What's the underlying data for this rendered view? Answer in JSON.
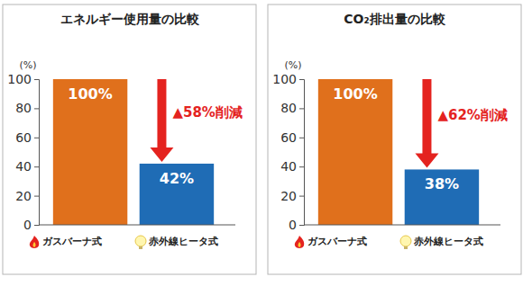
{
  "chart_data": [
    {
      "type": "bar",
      "title": "エネルギー使用量の比較",
      "y_label": "(%)",
      "categories": [
        "ガスバーナ式",
        "赤外線ヒータ式"
      ],
      "values": [
        100,
        42
      ],
      "value_labels": [
        "100%",
        "42%"
      ],
      "colors": [
        "#e0701c",
        "#1f6cb5"
      ],
      "ylim": [
        0,
        100
      ],
      "yticks": [
        0,
        20,
        40,
        60,
        80,
        100
      ],
      "data_labels": true,
      "tick_labels": "y",
      "legend": "bottom",
      "grid": false,
      "annotation": "▲58%削減"
    },
    {
      "type": "bar",
      "title": "CO₂排出量の比較",
      "y_label": "(%)",
      "categories": [
        "ガスバーナ式",
        "赤外線ヒータ式"
      ],
      "values": [
        100,
        38
      ],
      "value_labels": [
        "100%",
        "38%"
      ],
      "colors": [
        "#e0701c",
        "#1f6cb5"
      ],
      "ylim": [
        0,
        100
      ],
      "yticks": [
        0,
        20,
        40,
        60,
        80,
        100
      ],
      "data_labels": true,
      "tick_labels": "y",
      "legend": "bottom",
      "grid": false,
      "annotation": "▲62%削減"
    }
  ]
}
